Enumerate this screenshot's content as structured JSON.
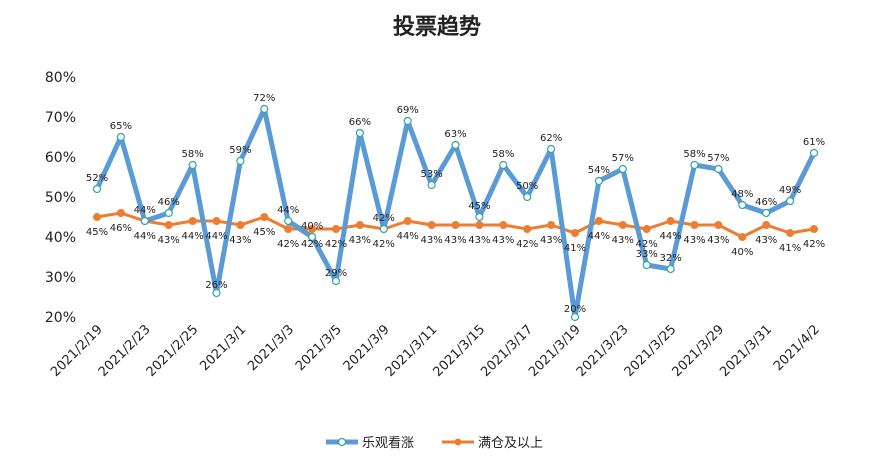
{
  "chart_data": {
    "type": "line",
    "title": "投票趋势",
    "xlabel": "",
    "ylabel": "",
    "ylim": [
      20,
      80
    ],
    "yticks": [
      "20%",
      "30%",
      "40%",
      "50%",
      "60%",
      "70%",
      "80%"
    ],
    "x_tick_labels": [
      "2021/2/19",
      "2021/2/23",
      "2021/2/25",
      "2021/3/1",
      "2021/3/3",
      "2021/3/5",
      "2021/3/9",
      "2021/3/11",
      "2021/3/15",
      "2021/3/17",
      "2021/3/19",
      "2021/3/23",
      "2021/3/25",
      "2021/3/29",
      "2021/3/31",
      "2021/4/2"
    ],
    "series": [
      {
        "name": "乐观看涨",
        "color": "#5b9bd5",
        "values": [
          52,
          65,
          44,
          46,
          58,
          26,
          59,
          72,
          44,
          40,
          29,
          66,
          42,
          69,
          53,
          63,
          45,
          58,
          50,
          62,
          20,
          54,
          57,
          33,
          32,
          58,
          57,
          48,
          46,
          49,
          61
        ]
      },
      {
        "name": "满仓及以上",
        "color": "#ed7d31",
        "values": [
          45,
          46,
          44,
          43,
          44,
          44,
          43,
          45,
          42,
          42,
          42,
          43,
          42,
          44,
          43,
          43,
          43,
          43,
          42,
          43,
          41,
          44,
          43,
          42,
          44,
          43,
          43,
          40,
          43,
          41,
          42
        ]
      }
    ],
    "legend": "bottom"
  }
}
